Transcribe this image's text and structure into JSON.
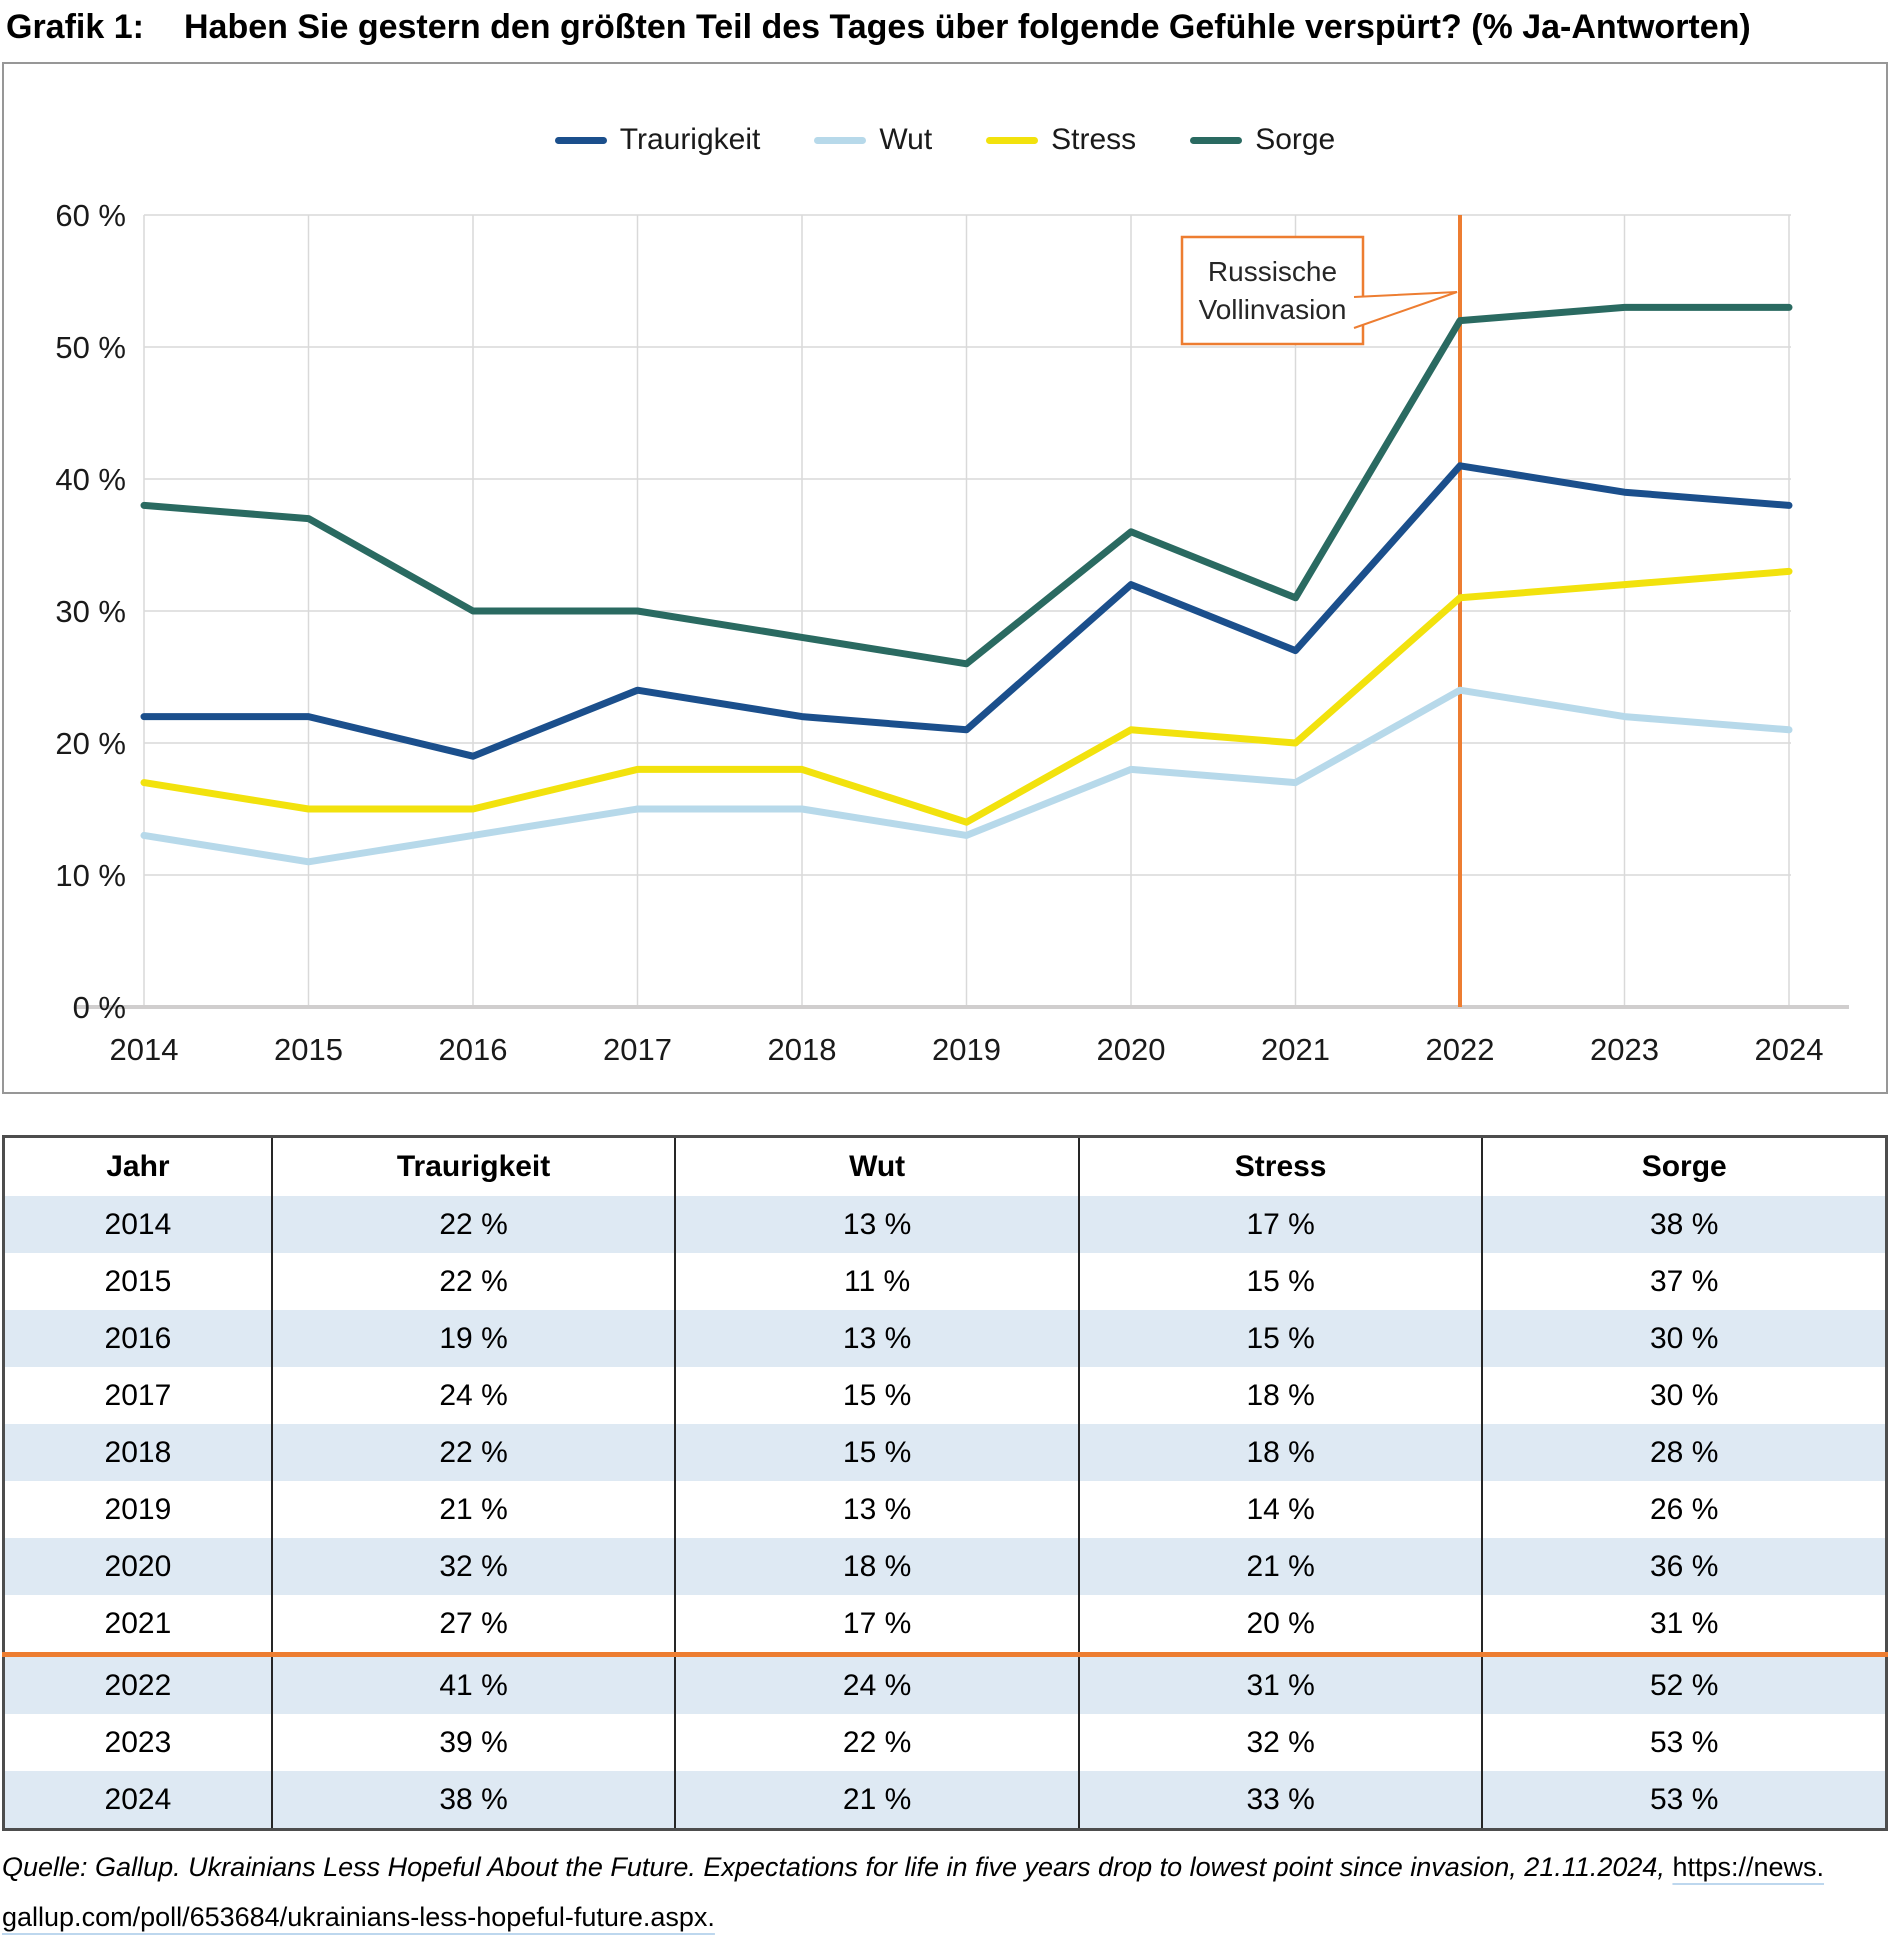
{
  "page": {
    "label": "Grafik 1:",
    "title": "Haben Sie gestern den größten Teil des Tages über folgende Gefühle verspürt? (% Ja-Antworten)"
  },
  "chart_data": {
    "type": "line",
    "x": [
      2014,
      2015,
      2016,
      2017,
      2018,
      2019,
      2020,
      2021,
      2022,
      2023,
      2024
    ],
    "series": [
      {
        "name": "Traurigkeit",
        "color": "#1B4F8C",
        "values": [
          22,
          22,
          19,
          24,
          22,
          21,
          32,
          27,
          41,
          39,
          38
        ]
      },
      {
        "name": "Wut",
        "color": "#B7D9EA",
        "values": [
          13,
          11,
          13,
          15,
          15,
          13,
          18,
          17,
          24,
          22,
          21
        ]
      },
      {
        "name": "Stress",
        "color": "#F2E20D",
        "values": [
          17,
          15,
          15,
          18,
          18,
          14,
          21,
          20,
          31,
          32,
          33
        ]
      },
      {
        "name": "Sorge",
        "color": "#2A6A61",
        "values": [
          38,
          37,
          30,
          30,
          28,
          26,
          36,
          31,
          52,
          53,
          53
        ]
      }
    ],
    "ylim": [
      0,
      60
    ],
    "ytick_step": 10,
    "ytick_suffix": " %",
    "grid": true,
    "legend_position": "top",
    "annotation": {
      "line1": "Russische",
      "line2": "Vollinvasion",
      "at_x": 2022,
      "color": "#ED7D31"
    },
    "colors": {
      "gridline": "#D9D9D9",
      "axis_line": "#D0CECE",
      "label": "#1a1a1a"
    }
  },
  "table": {
    "columns": [
      "Jahr",
      "Traurigkeit",
      "Wut",
      "Stress",
      "Sorge"
    ],
    "rows": [
      [
        "2014",
        "22 %",
        "13 %",
        "17 %",
        "38 %"
      ],
      [
        "2015",
        "22 %",
        "11 %",
        "15 %",
        "37 %"
      ],
      [
        "2016",
        "19 %",
        "13 %",
        "15 %",
        "30 %"
      ],
      [
        "2017",
        "24 %",
        "15 %",
        "18 %",
        "30 %"
      ],
      [
        "2018",
        "22 %",
        "15 %",
        "18 %",
        "28 %"
      ],
      [
        "2019",
        "21 %",
        "13 %",
        "14 %",
        "26 %"
      ],
      [
        "2020",
        "32 %",
        "18 %",
        "21 %",
        "36 %"
      ],
      [
        "2021",
        "27 %",
        "17 %",
        "20 %",
        "31 %"
      ],
      [
        "2022",
        "41 %",
        "24 %",
        "31 %",
        "52 %"
      ],
      [
        "2023",
        "39 %",
        "22 %",
        "32 %",
        "53 %"
      ],
      [
        "2024",
        "38 %",
        "21 %",
        "33 %",
        "53 %"
      ]
    ],
    "divider_before_year": "2022",
    "divider_color": "#ED7D31",
    "alt_row_color": "#DEE9F3"
  },
  "footer": {
    "source_italic": "Quelle: Gallup. Ukrainians Less Hopeful About the Future. Expectations for life in five years drop to lowest point since invasion, 21.11.2024, ",
    "url_line1": "https://news.",
    "url_line2": "gallup.com/poll/653684/ukrainians-less-hopeful-future.aspx."
  }
}
